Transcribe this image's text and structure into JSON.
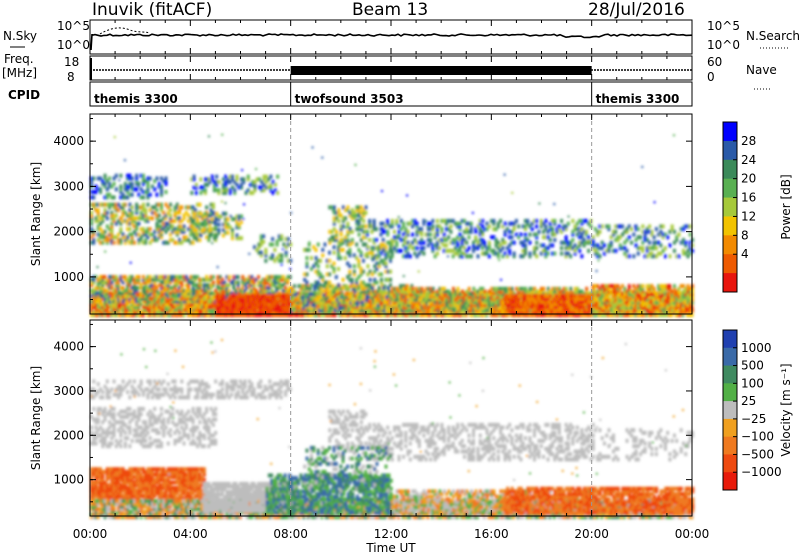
{
  "header": {
    "station": "Inuvik (fitACF)",
    "beam": "Beam 13",
    "date": "28/Jul/2016"
  },
  "side_labels": {
    "nsky": "N.Sky",
    "freq": "Freq.",
    "freq_unit": "[MHz]",
    "cpid": "CPID",
    "nsearch": "N.Search",
    "nave": "Nave"
  },
  "noise_panel": {
    "left_ticks": [
      "10^5",
      "10^0"
    ],
    "right_ticks": [
      "10^5",
      "10^0"
    ]
  },
  "freq_panel": {
    "left_ticks": [
      "18",
      "8"
    ],
    "right_ticks": [
      "60",
      "0"
    ]
  },
  "cpid": [
    {
      "label": "themis 3300",
      "start_h": 0,
      "end_h": 8
    },
    {
      "label": "twofsound 3503",
      "start_h": 8,
      "end_h": 20
    },
    {
      "label": "themis 3300",
      "start_h": 20,
      "end_h": 24
    }
  ],
  "xaxis": {
    "label": "Time UT",
    "ticks": [
      "00:00",
      "04:00",
      "08:00",
      "12:00",
      "16:00",
      "20:00",
      "00:00"
    ],
    "range_h": [
      0,
      24
    ]
  },
  "chart_data": [
    {
      "type": "heatmap",
      "quantity": "Power",
      "ylabel": "Slant Range [km]",
      "yticks": [
        "1000",
        "2000",
        "3000",
        "4000"
      ],
      "ylim": [
        180,
        4600
      ],
      "colorbar": {
        "label": "Power [dB]",
        "ticks": [
          "4",
          "8",
          "12",
          "16",
          "20",
          "24",
          "28"
        ],
        "colors": [
          "#0000ff",
          "#2a5aa8",
          "#3b8a5a",
          "#59b052",
          "#a6c93a",
          "#f2c300",
          "#f28a00",
          "#ee5a00",
          "#e8150d"
        ]
      }
    },
    {
      "type": "heatmap",
      "quantity": "Velocity",
      "ylabel": "Slant Range [km]",
      "yticks": [
        "1000",
        "2000",
        "3000",
        "4000"
      ],
      "ylim": [
        180,
        4600
      ],
      "colorbar": {
        "label": "Velocity [m s⁻¹]",
        "ticks": [
          "1000",
          "500",
          "100",
          "25",
          "−25",
          "−100",
          "−500",
          "−1000"
        ],
        "colors": [
          "#2040b0",
          "#3a6aa8",
          "#3f8a60",
          "#52b046",
          "#bdbdbd",
          "#f0a020",
          "#ef7a20",
          "#ee4a10",
          "#e81a0a"
        ]
      }
    }
  ]
}
